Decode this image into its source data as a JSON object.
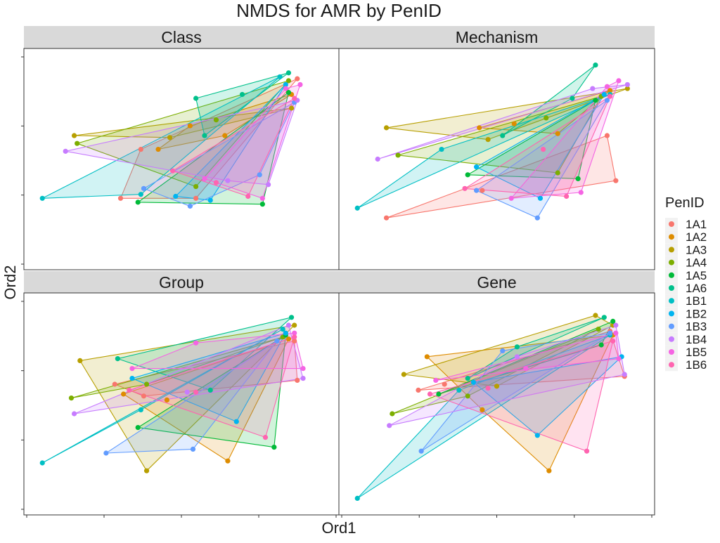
{
  "title": "NMDS for AMR by PenID",
  "xlabel": "Ord1",
  "ylabel": "Ord2",
  "legend": {
    "title": "PenID",
    "position": "right",
    "entries": [
      {
        "label": "1A1",
        "color": "#F8766D"
      },
      {
        "label": "1A2",
        "color": "#DE8C00"
      },
      {
        "label": "1A3",
        "color": "#B79F00"
      },
      {
        "label": "1A4",
        "color": "#7CAE00"
      },
      {
        "label": "1A5",
        "color": "#00BA38"
      },
      {
        "label": "1A6",
        "color": "#00C08B"
      },
      {
        "label": "1B1",
        "color": "#00BFC4"
      },
      {
        "label": "1B2",
        "color": "#00B4F0"
      },
      {
        "label": "1B3",
        "color": "#619CFF"
      },
      {
        "label": "1B4",
        "color": "#C77CFF"
      },
      {
        "label": "1B5",
        "color": "#F564E3"
      },
      {
        "label": "1B6",
        "color": "#FF64B0"
      }
    ]
  },
  "chart_data": {
    "type": "scatter",
    "subtype": "faceted scatter with convex hulls per group",
    "title": "NMDS for AMR by PenID",
    "xlabel": "Ord1",
    "ylabel": "Ord2",
    "tick_labels_shown": false,
    "grid": false,
    "legend_placement": "right",
    "facets": [
      {
        "name": "Class",
        "groups": {
          "1A1": [
            [
              0.29,
              0.3
            ],
            [
              0.55,
              0.3
            ],
            [
              0.9,
              0.91
            ],
            [
              0.36,
              0.55
            ]
          ],
          "1A2": [
            [
              0.42,
              0.55
            ],
            [
              0.65,
              0.62
            ],
            [
              0.88,
              0.83
            ],
            [
              0.53,
              0.67
            ]
          ],
          "1A3": [
            [
              0.13,
              0.62
            ],
            [
              0.46,
              0.61
            ],
            [
              0.88,
              0.76
            ]
          ],
          "1A4": [
            [
              0.14,
              0.58
            ],
            [
              0.62,
              0.7
            ],
            [
              0.87,
              0.9
            ],
            [
              0.55,
              0.36
            ]
          ],
          "1A5": [
            [
              0.35,
              0.28
            ],
            [
              0.78,
              0.27
            ],
            [
              0.87,
              0.84
            ]
          ],
          "1A6": [
            [
              0.58,
              0.62
            ],
            [
              0.55,
              0.81
            ],
            [
              0.71,
              0.83
            ],
            [
              0.87,
              0.94
            ]
          ],
          "1B1": [
            [
              0.02,
              0.3
            ],
            [
              0.36,
              0.32
            ],
            [
              0.84,
              0.92
            ]
          ],
          "1B2": [
            [
              0.48,
              0.31
            ],
            [
              0.6,
              0.29
            ],
            [
              0.86,
              0.88
            ]
          ],
          "1B3": [
            [
              0.37,
              0.35
            ],
            [
              0.53,
              0.26
            ],
            [
              0.77,
              0.42
            ],
            [
              0.89,
              0.79
            ]
          ],
          "1B4": [
            [
              0.1,
              0.54
            ],
            [
              0.66,
              0.39
            ],
            [
              0.9,
              0.8
            ],
            [
              0.8,
              0.37
            ]
          ],
          "1B5": [
            [
              0.58,
              0.4
            ],
            [
              0.78,
              0.3
            ],
            [
              0.86,
              0.86
            ],
            [
              0.91,
              0.88
            ]
          ],
          "1B6": [
            [
              0.47,
              0.44
            ],
            [
              0.62,
              0.38
            ],
            [
              0.89,
              0.81
            ],
            [
              0.73,
              0.31
            ]
          ]
        }
      },
      {
        "name": "Mechanism",
        "groups": {
          "1A1": [
            [
              0.12,
              0.2
            ],
            [
              0.45,
              0.34
            ],
            [
              0.88,
              0.62
            ],
            [
              0.91,
              0.39
            ]
          ],
          "1A2": [
            [
              0.44,
              0.66
            ],
            [
              0.71,
              0.63
            ],
            [
              0.89,
              0.85
            ],
            [
              0.56,
              0.68
            ]
          ],
          "1A3": [
            [
              0.12,
              0.66
            ],
            [
              0.47,
              0.6
            ],
            [
              0.95,
              0.86
            ]
          ],
          "1A4": [
            [
              0.16,
              0.52
            ],
            [
              0.67,
              0.71
            ],
            [
              0.86,
              0.82
            ],
            [
              0.71,
              0.43
            ]
          ],
          "1A5": [
            [
              0.4,
              0.42
            ],
            [
              0.78,
              0.4
            ],
            [
              0.84,
              0.8
            ]
          ],
          "1A6": [
            [
              0.52,
              0.62
            ],
            [
              0.76,
              0.81
            ],
            [
              0.84,
              0.98
            ]
          ],
          "1B1": [
            [
              0.02,
              0.25
            ],
            [
              0.31,
              0.55
            ],
            [
              0.89,
              0.83
            ]
          ],
          "1B2": [
            [
              0.43,
              0.46
            ],
            [
              0.65,
              0.3
            ],
            [
              0.87,
              0.83
            ]
          ],
          "1B3": [
            [
              0.43,
              0.34
            ],
            [
              0.64,
              0.2
            ],
            [
              0.88,
              0.8
            ]
          ],
          "1B4": [
            [
              0.09,
              0.5
            ],
            [
              0.83,
              0.86
            ],
            [
              0.95,
              0.88
            ]
          ],
          "1B5": [
            [
              0.55,
              0.3
            ],
            [
              0.79,
              0.33
            ],
            [
              0.88,
              0.87
            ],
            [
              0.92,
              0.9
            ]
          ],
          "1B6": [
            [
              0.39,
              0.35
            ],
            [
              0.66,
              0.55
            ],
            [
              0.89,
              0.82
            ],
            [
              0.74,
              0.31
            ]
          ]
        }
      },
      {
        "name": "Group",
        "groups": {
          "1A1": [
            [
              0.27,
              0.6
            ],
            [
              0.37,
              0.54
            ],
            [
              0.89,
              0.82
            ],
            [
              0.9,
              0.62
            ]
          ],
          "1A2": [
            [
              0.3,
              0.55
            ],
            [
              0.45,
              0.52
            ],
            [
              0.87,
              0.83
            ],
            [
              0.66,
              0.21
            ]
          ],
          "1A3": [
            [
              0.15,
              0.72
            ],
            [
              0.38,
              0.16
            ],
            [
              0.89,
              0.9
            ]
          ],
          "1A4": [
            [
              0.12,
              0.53
            ],
            [
              0.38,
              0.6
            ],
            [
              0.85,
              0.84
            ]
          ],
          "1A5": [
            [
              0.35,
              0.38
            ],
            [
              0.82,
              0.28
            ],
            [
              0.86,
              0.85
            ]
          ],
          "1A6": [
            [
              0.28,
              0.73
            ],
            [
              0.6,
              0.57
            ],
            [
              0.88,
              0.94
            ]
          ],
          "1B1": [
            [
              0.02,
              0.2
            ],
            [
              0.36,
              0.47
            ],
            [
              0.85,
              0.88
            ]
          ],
          "1B2": [
            [
              0.33,
              0.63
            ],
            [
              0.69,
              0.41
            ],
            [
              0.86,
              0.86
            ]
          ],
          "1B3": [
            [
              0.24,
              0.25
            ],
            [
              0.54,
              0.27
            ],
            [
              0.83,
              0.82
            ]
          ],
          "1B4": [
            [
              0.13,
              0.45
            ],
            [
              0.52,
              0.56
            ],
            [
              0.87,
              0.9
            ],
            [
              0.92,
              0.63
            ]
          ],
          "1B5": [
            [
              0.33,
              0.68
            ],
            [
              0.55,
              0.81
            ],
            [
              0.89,
              0.86
            ],
            [
              0.92,
              0.68
            ]
          ],
          "1B6": [
            [
              0.32,
              0.57
            ],
            [
              0.55,
              0.56
            ],
            [
              0.89,
              0.84
            ],
            [
              0.79,
              0.33
            ]
          ]
        }
      },
      {
        "name": "Gene",
        "groups": {
          "1A1": [
            [
              0.23,
              0.57
            ],
            [
              0.32,
              0.6
            ],
            [
              0.89,
              0.87
            ],
            [
              0.94,
              0.64
            ]
          ],
          "1A2": [
            [
              0.26,
              0.74
            ],
            [
              0.45,
              0.47
            ],
            [
              0.9,
              0.85
            ],
            [
              0.68,
              0.16
            ]
          ],
          "1A3": [
            [
              0.18,
              0.65
            ],
            [
              0.5,
              0.59
            ],
            [
              0.9,
              0.9
            ],
            [
              0.84,
              0.95
            ]
          ],
          "1A4": [
            [
              0.14,
              0.45
            ],
            [
              0.4,
              0.54
            ],
            [
              0.85,
              0.88
            ]
          ],
          "1A5": [
            [
              0.3,
              0.55
            ],
            [
              0.86,
              0.8
            ],
            [
              0.9,
              0.92
            ]
          ],
          "1A6": [
            [
              0.4,
              0.63
            ],
            [
              0.57,
              0.79
            ],
            [
              0.87,
              0.94
            ]
          ],
          "1B1": [
            [
              0.02,
              0.02
            ],
            [
              0.37,
              0.57
            ],
            [
              0.89,
              0.85
            ]
          ],
          "1B2": [
            [
              0.42,
              0.61
            ],
            [
              0.64,
              0.34
            ],
            [
              0.93,
              0.74
            ]
          ],
          "1B3": [
            [
              0.24,
              0.26
            ],
            [
              0.52,
              0.77
            ],
            [
              0.89,
              0.86
            ]
          ],
          "1B4": [
            [
              0.13,
              0.39
            ],
            [
              0.57,
              0.74
            ],
            [
              0.91,
              0.9
            ],
            [
              0.94,
              0.65
            ]
          ],
          "1B5": [
            [
              0.29,
              0.62
            ],
            [
              0.6,
              0.68
            ],
            [
              0.91,
              0.86
            ],
            [
              0.92,
              0.73
            ]
          ],
          "1B6": [
            [
              0.27,
              0.55
            ],
            [
              0.47,
              0.58
            ],
            [
              0.9,
              0.82
            ],
            [
              0.81,
              0.26
            ]
          ]
        }
      }
    ]
  }
}
